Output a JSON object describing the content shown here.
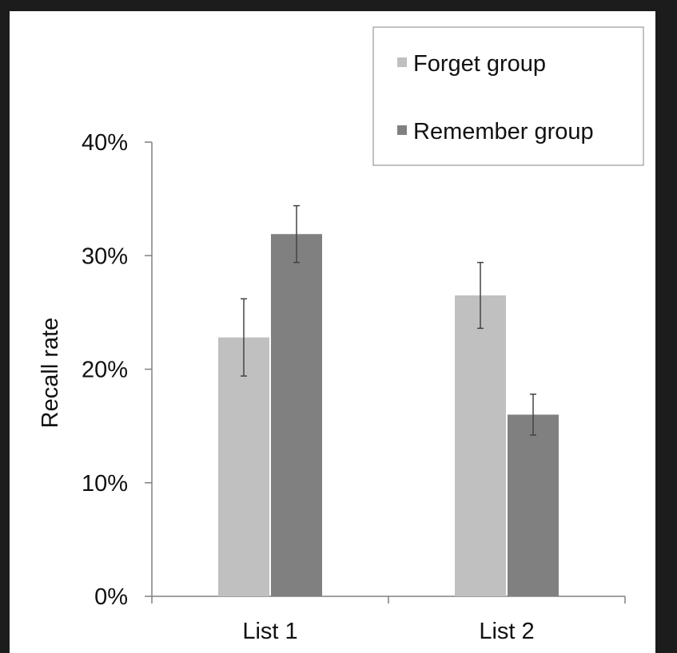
{
  "chart_data": {
    "type": "bar",
    "categories": [
      "List 1",
      "List 2"
    ],
    "series": [
      {
        "name": "Forget group",
        "color": "#c0c0c0",
        "values": [
          22.8,
          26.5
        ],
        "errors": [
          3.4,
          2.9
        ]
      },
      {
        "name": "Remember group",
        "color": "#808080",
        "values": [
          31.9,
          16.0
        ],
        "errors": [
          2.5,
          1.8
        ]
      }
    ],
    "ylabel": "Recall rate",
    "xlabel": "",
    "ylim": [
      0,
      40
    ],
    "yticks": [
      0,
      10,
      20,
      30,
      40
    ],
    "ytick_labels": [
      "0%",
      "10%",
      "20%",
      "30%",
      "40%"
    ],
    "legend_position": "top-right",
    "grid": false
  }
}
